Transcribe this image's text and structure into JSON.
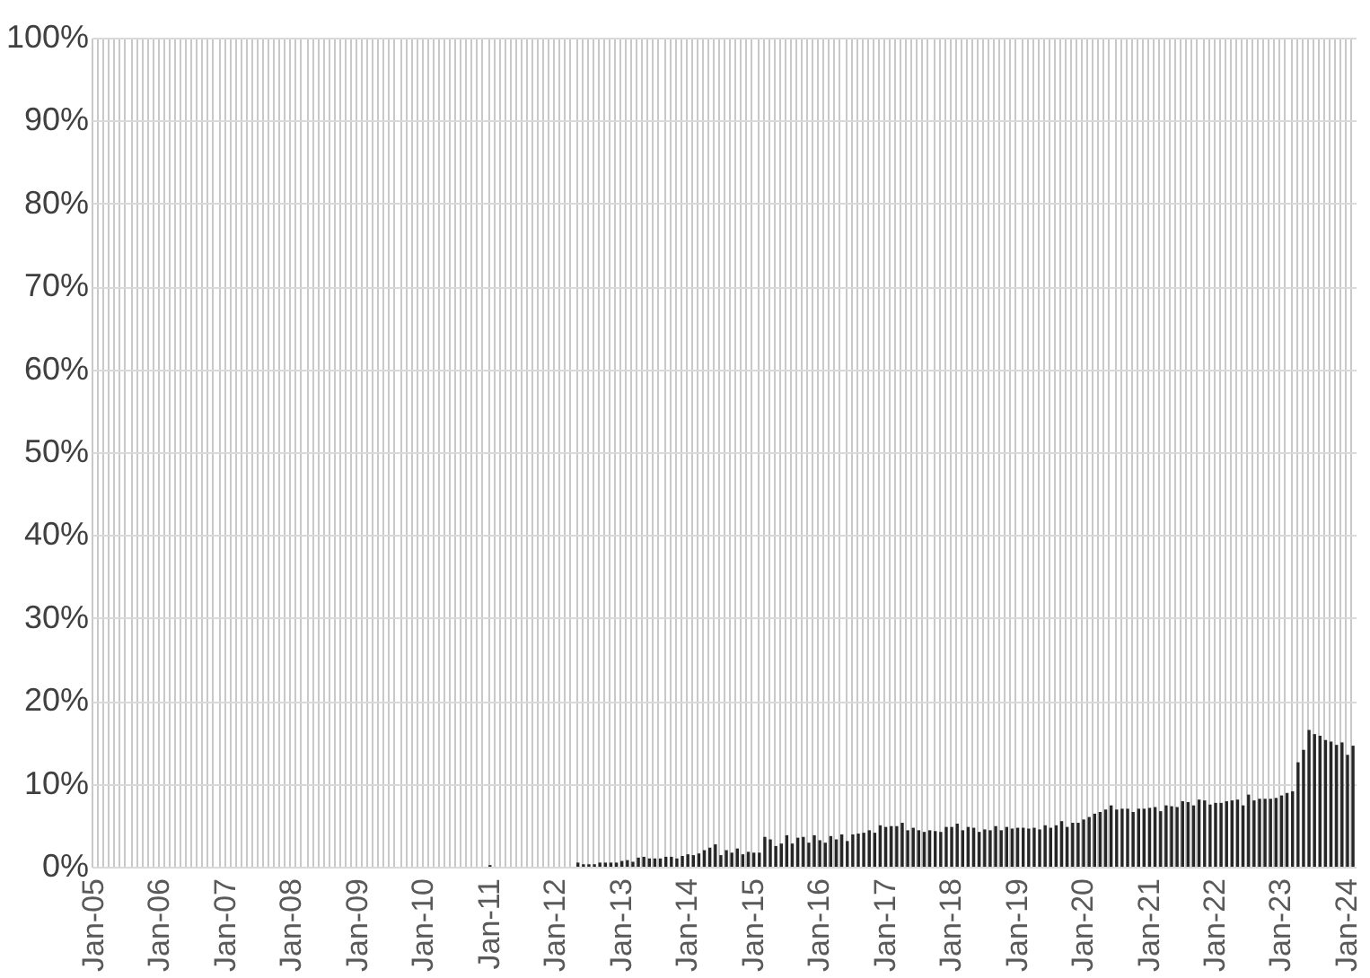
{
  "chart_data": {
    "type": "bar",
    "categories": [
      "Jan-05",
      null,
      null,
      null,
      null,
      null,
      null,
      null,
      null,
      null,
      null,
      null,
      "Jan-06",
      null,
      null,
      null,
      null,
      null,
      null,
      null,
      null,
      null,
      null,
      null,
      "Jan-07",
      null,
      null,
      null,
      null,
      null,
      null,
      null,
      null,
      null,
      null,
      null,
      "Jan-08",
      null,
      null,
      null,
      null,
      null,
      null,
      null,
      null,
      null,
      null,
      null,
      "Jan-09",
      null,
      null,
      null,
      null,
      null,
      null,
      null,
      null,
      null,
      null,
      null,
      "Jan-10",
      null,
      null,
      null,
      null,
      null,
      null,
      null,
      null,
      null,
      null,
      null,
      "Jan-11",
      null,
      null,
      null,
      null,
      null,
      null,
      null,
      null,
      null,
      null,
      null,
      "Jan-12",
      null,
      null,
      null,
      null,
      null,
      null,
      null,
      null,
      null,
      null,
      null,
      "Jan-13",
      null,
      null,
      null,
      null,
      null,
      null,
      null,
      null,
      null,
      null,
      null,
      "Jan-14",
      null,
      null,
      null,
      null,
      null,
      null,
      null,
      null,
      null,
      null,
      null,
      "Jan-15",
      null,
      null,
      null,
      null,
      null,
      null,
      null,
      null,
      null,
      null,
      null,
      "Jan-16",
      null,
      null,
      null,
      null,
      null,
      null,
      null,
      null,
      null,
      null,
      null,
      "Jan-17",
      null,
      null,
      null,
      null,
      null,
      null,
      null,
      null,
      null,
      null,
      null,
      "Jan-18",
      null,
      null,
      null,
      null,
      null,
      null,
      null,
      null,
      null,
      null,
      null,
      "Jan-19",
      null,
      null,
      null,
      null,
      null,
      null,
      null,
      null,
      null,
      null,
      null,
      "Jan-20",
      null,
      null,
      null,
      null,
      null,
      null,
      null,
      null,
      null,
      null,
      null,
      "Jan-21",
      null,
      null,
      null,
      null,
      null,
      null,
      null,
      null,
      null,
      null,
      null,
      "Jan-22",
      null,
      null,
      null,
      null,
      null,
      null,
      null,
      null,
      null,
      null,
      null,
      "Jan-23",
      null,
      null,
      null,
      null,
      null,
      null,
      null,
      null,
      null,
      null,
      null,
      "Jan-24",
      null
    ],
    "values": [
      0,
      0,
      0,
      0,
      0,
      0,
      0,
      0,
      0,
      0,
      0,
      0,
      0,
      0,
      0,
      0,
      0,
      0,
      0,
      0,
      0,
      0,
      0,
      0,
      0,
      0,
      0,
      0,
      0,
      0,
      0,
      0,
      0,
      0,
      0,
      0,
      0,
      0,
      0,
      0,
      0,
      0,
      0,
      0,
      0,
      0,
      0,
      0,
      0,
      0,
      0,
      0,
      0,
      0,
      0,
      0,
      0,
      0,
      0,
      0,
      0,
      0,
      0,
      0,
      0,
      0,
      0,
      0,
      0,
      0,
      0,
      0,
      0.2,
      0,
      0,
      0,
      0,
      0,
      0,
      0,
      0,
      0,
      0,
      0,
      0,
      0,
      0,
      0,
      0.5,
      0.3,
      0.3,
      0.3,
      0.5,
      0.5,
      0.5,
      0.5,
      0.7,
      0.8,
      0.6,
      1.1,
      1.2,
      1.0,
      1.0,
      1.0,
      1.2,
      1.2,
      1.0,
      1.3,
      1.5,
      1.4,
      1.6,
      2.0,
      2.3,
      2.7,
      1.4,
      2.0,
      1.7,
      2.2,
      1.5,
      1.8,
      1.7,
      1.7,
      3.6,
      3.3,
      2.5,
      2.8,
      3.8,
      2.8,
      3.5,
      3.6,
      2.9,
      3.8,
      3.2,
      2.9,
      3.7,
      3.3,
      3.9,
      3.1,
      3.9,
      4.0,
      4.1,
      4.4,
      4.1,
      5.0,
      4.8,
      4.9,
      4.9,
      5.3,
      4.4,
      4.7,
      4.4,
      4.2,
      4.4,
      4.3,
      4.2,
      4.8,
      4.8,
      5.2,
      4.4,
      4.8,
      4.7,
      4.2,
      4.5,
      4.4,
      4.9,
      4.4,
      4.8,
      4.6,
      4.7,
      4.7,
      4.6,
      4.7,
      4.5,
      5.0,
      4.7,
      5.0,
      5.5,
      4.8,
      5.3,
      5.3,
      5.7,
      6.0,
      6.4,
      6.6,
      6.9,
      7.4,
      6.9,
      7.0,
      7.0,
      6.6,
      7.0,
      7.0,
      7.1,
      7.2,
      6.7,
      7.4,
      7.3,
      7.2,
      7.9,
      7.8,
      7.4,
      8.1,
      8.0,
      7.5,
      7.7,
      7.7,
      7.9,
      8.0,
      8.1,
      7.4,
      8.7,
      8.0,
      8.2,
      8.2,
      8.2,
      8.3,
      8.6,
      8.9,
      9.1,
      12.6,
      14.1,
      16.5,
      16.0,
      15.8,
      15.3,
      15.1,
      14.7,
      15.0,
      13.5,
      14.6
    ],
    "color": "#262626",
    "ylim": [
      0,
      100
    ],
    "yticks": [
      {
        "value": 0,
        "label": "0%"
      },
      {
        "value": 10,
        "label": "10%"
      },
      {
        "value": 20,
        "label": "20%"
      },
      {
        "value": 30,
        "label": "30%"
      },
      {
        "value": 40,
        "label": "40%"
      },
      {
        "value": 50,
        "label": "50%"
      },
      {
        "value": 60,
        "label": "60%"
      },
      {
        "value": 70,
        "label": "70%"
      },
      {
        "value": 80,
        "label": "80%"
      },
      {
        "value": 90,
        "label": "90%"
      },
      {
        "value": 100,
        "label": "100%"
      }
    ],
    "grid": true
  }
}
